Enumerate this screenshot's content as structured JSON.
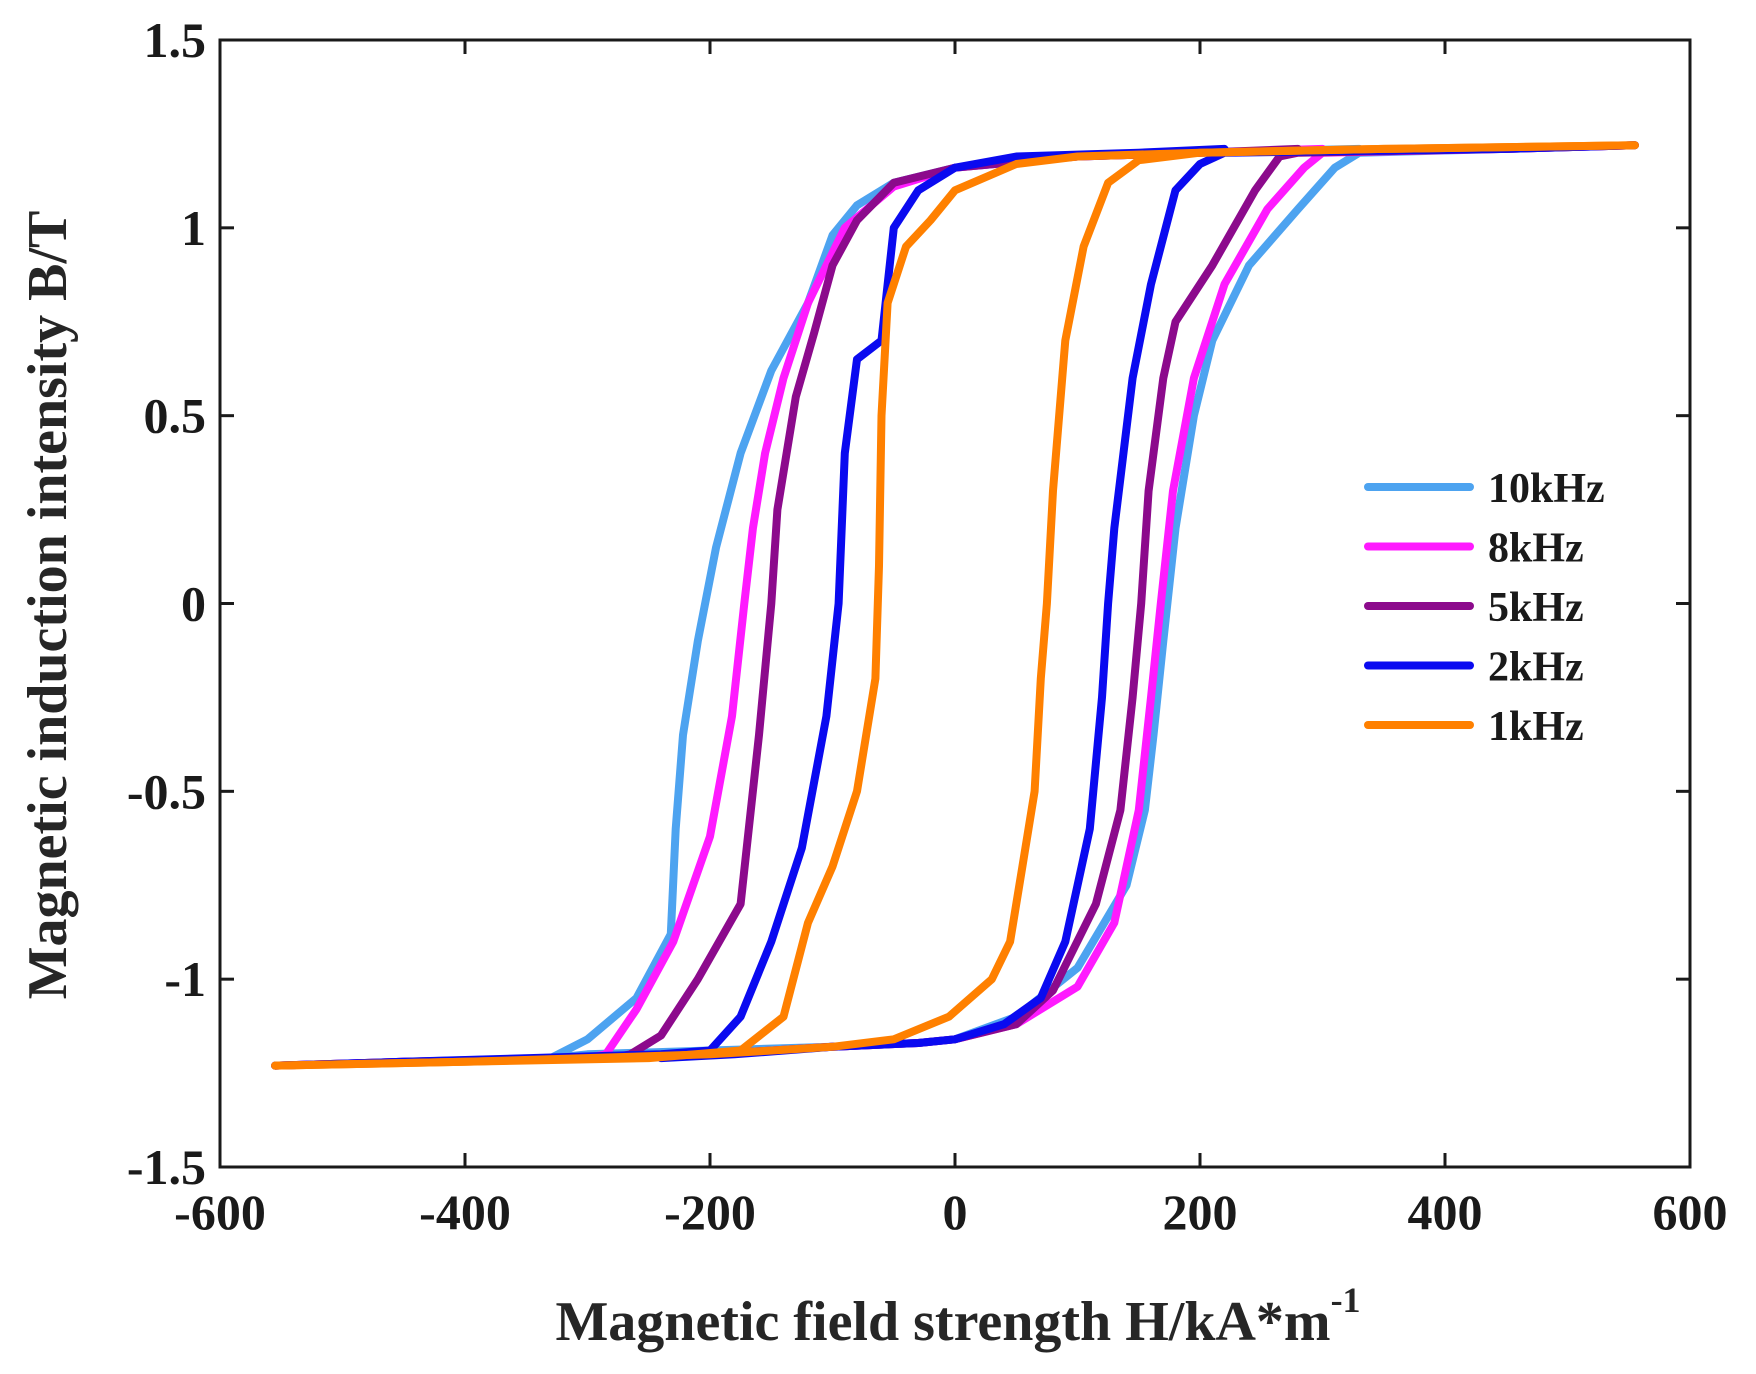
{
  "chart_data": {
    "type": "line",
    "title": "",
    "xlabel": "Magnetic field strength H/kA*m",
    "xlabel_superscript": "-1",
    "ylabel": "Magnetic induction intensity B/T",
    "xlim": [
      -600,
      600
    ],
    "ylim": [
      -1.5,
      1.5
    ],
    "xticks": [
      -600,
      -400,
      -200,
      0,
      200,
      400,
      600
    ],
    "xtick_labels": [
      "-600",
      "-400",
      "-200",
      "0",
      "200",
      "400",
      "600"
    ],
    "yticks": [
      -1.5,
      -1,
      -0.5,
      0,
      0.5,
      1,
      1.5
    ],
    "ytick_labels": [
      "-1.5",
      "-1",
      "-0.5",
      "0",
      "0.5",
      "1",
      "1.5"
    ],
    "grid": false,
    "legend_position": "right",
    "series": [
      {
        "name": "10kHz",
        "color": "#4da3f0",
        "ascending": [
          [
            -330,
            -1.21
          ],
          [
            -300,
            -1.2
          ],
          [
            -200,
            -1.19
          ],
          [
            -100,
            -1.18
          ],
          [
            -30,
            -1.17
          ],
          [
            0,
            -1.16
          ],
          [
            50,
            -1.1
          ],
          [
            100,
            -0.97
          ],
          [
            140,
            -0.75
          ],
          [
            155,
            -0.55
          ],
          [
            162,
            -0.35
          ],
          [
            170,
            -0.1
          ],
          [
            180,
            0.2
          ],
          [
            195,
            0.5
          ],
          [
            210,
            0.7
          ],
          [
            240,
            0.9
          ],
          [
            280,
            1.05
          ],
          [
            310,
            1.16
          ],
          [
            330,
            1.2
          ],
          [
            450,
            1.21
          ],
          [
            555,
            1.22
          ]
        ],
        "descending": [
          [
            330,
            1.21
          ],
          [
            200,
            1.2
          ],
          [
            100,
            1.19
          ],
          [
            0,
            1.16
          ],
          [
            -50,
            1.12
          ],
          [
            -80,
            1.06
          ],
          [
            -100,
            0.98
          ],
          [
            -120,
            0.8
          ],
          [
            -150,
            0.62
          ],
          [
            -175,
            0.4
          ],
          [
            -195,
            0.15
          ],
          [
            -210,
            -0.1
          ],
          [
            -222,
            -0.35
          ],
          [
            -228,
            -0.6
          ],
          [
            -232,
            -0.88
          ],
          [
            -260,
            -1.05
          ],
          [
            -300,
            -1.16
          ],
          [
            -330,
            -1.21
          ],
          [
            -450,
            -1.22
          ],
          [
            -555,
            -1.23
          ]
        ]
      },
      {
        "name": "8kHz",
        "color": "#ff1aff",
        "ascending": [
          [
            -300,
            -1.21
          ],
          [
            -200,
            -1.2
          ],
          [
            -100,
            -1.18
          ],
          [
            -30,
            -1.17
          ],
          [
            0,
            -1.16
          ],
          [
            50,
            -1.12
          ],
          [
            100,
            -1.02
          ],
          [
            130,
            -0.85
          ],
          [
            150,
            -0.55
          ],
          [
            160,
            -0.25
          ],
          [
            168,
            0.0
          ],
          [
            178,
            0.3
          ],
          [
            195,
            0.6
          ],
          [
            220,
            0.85
          ],
          [
            255,
            1.05
          ],
          [
            285,
            1.16
          ],
          [
            300,
            1.2
          ],
          [
            450,
            1.21
          ],
          [
            555,
            1.22
          ]
        ],
        "descending": [
          [
            300,
            1.21
          ],
          [
            200,
            1.2
          ],
          [
            100,
            1.19
          ],
          [
            0,
            1.16
          ],
          [
            -50,
            1.11
          ],
          [
            -90,
            1.0
          ],
          [
            -120,
            0.8
          ],
          [
            -140,
            0.6
          ],
          [
            -155,
            0.4
          ],
          [
            -165,
            0.2
          ],
          [
            -172,
            0.0
          ],
          [
            -182,
            -0.3
          ],
          [
            -200,
            -0.62
          ],
          [
            -230,
            -0.9
          ],
          [
            -260,
            -1.08
          ],
          [
            -285,
            -1.2
          ],
          [
            -300,
            -1.21
          ],
          [
            -450,
            -1.22
          ],
          [
            -555,
            -1.23
          ]
        ]
      },
      {
        "name": "5kHz",
        "color": "#8c0a8c",
        "ascending": [
          [
            -280,
            -1.21
          ],
          [
            -200,
            -1.2
          ],
          [
            -100,
            -1.18
          ],
          [
            -30,
            -1.17
          ],
          [
            0,
            -1.16
          ],
          [
            50,
            -1.12
          ],
          [
            80,
            -1.03
          ],
          [
            115,
            -0.8
          ],
          [
            135,
            -0.55
          ],
          [
            145,
            -0.25
          ],
          [
            152,
            0.0
          ],
          [
            158,
            0.3
          ],
          [
            170,
            0.6
          ],
          [
            180,
            0.75
          ],
          [
            210,
            0.9
          ],
          [
            245,
            1.1
          ],
          [
            265,
            1.19
          ],
          [
            280,
            1.2
          ],
          [
            450,
            1.21
          ],
          [
            555,
            1.22
          ]
        ],
        "descending": [
          [
            280,
            1.21
          ],
          [
            200,
            1.2
          ],
          [
            100,
            1.19
          ],
          [
            0,
            1.16
          ],
          [
            -50,
            1.12
          ],
          [
            -80,
            1.02
          ],
          [
            -100,
            0.9
          ],
          [
            -115,
            0.72
          ],
          [
            -130,
            0.55
          ],
          [
            -145,
            0.25
          ],
          [
            -150,
            0.0
          ],
          [
            -160,
            -0.35
          ],
          [
            -175,
            -0.8
          ],
          [
            -210,
            -1.0
          ],
          [
            -240,
            -1.15
          ],
          [
            -265,
            -1.2
          ],
          [
            -280,
            -1.21
          ],
          [
            -450,
            -1.22
          ],
          [
            -555,
            -1.23
          ]
        ]
      },
      {
        "name": "2kHz",
        "color": "#0a0af0",
        "ascending": [
          [
            -240,
            -1.21
          ],
          [
            -180,
            -1.2
          ],
          [
            -100,
            -1.18
          ],
          [
            -30,
            -1.17
          ],
          [
            0,
            -1.16
          ],
          [
            40,
            -1.12
          ],
          [
            70,
            -1.05
          ],
          [
            90,
            -0.9
          ],
          [
            110,
            -0.6
          ],
          [
            120,
            -0.25
          ],
          [
            125,
            0.0
          ],
          [
            130,
            0.2
          ],
          [
            145,
            0.6
          ],
          [
            160,
            0.85
          ],
          [
            180,
            1.1
          ],
          [
            200,
            1.17
          ],
          [
            220,
            1.2
          ],
          [
            450,
            1.21
          ],
          [
            555,
            1.22
          ]
        ],
        "descending": [
          [
            220,
            1.21
          ],
          [
            150,
            1.2
          ],
          [
            50,
            1.19
          ],
          [
            0,
            1.16
          ],
          [
            -30,
            1.1
          ],
          [
            -50,
            1.0
          ],
          [
            -60,
            0.7
          ],
          [
            -80,
            0.65
          ],
          [
            -90,
            0.4
          ],
          [
            -95,
            0.0
          ],
          [
            -105,
            -0.3
          ],
          [
            -125,
            -0.65
          ],
          [
            -150,
            -0.9
          ],
          [
            -175,
            -1.1
          ],
          [
            -200,
            -1.19
          ],
          [
            -240,
            -1.2
          ],
          [
            -450,
            -1.22
          ],
          [
            -555,
            -1.23
          ]
        ]
      },
      {
        "name": "1kHz",
        "color": "#ff8000",
        "ascending": [
          [
            -555,
            -1.23
          ],
          [
            -400,
            -1.22
          ],
          [
            -200,
            -1.2
          ],
          [
            -100,
            -1.18
          ],
          [
            -50,
            -1.16
          ],
          [
            -5,
            -1.1
          ],
          [
            30,
            -1.0
          ],
          [
            45,
            -0.9
          ],
          [
            55,
            -0.7
          ],
          [
            65,
            -0.5
          ],
          [
            70,
            -0.2
          ],
          [
            75,
            0.0
          ],
          [
            80,
            0.3
          ],
          [
            90,
            0.7
          ],
          [
            105,
            0.95
          ],
          [
            125,
            1.12
          ],
          [
            150,
            1.18
          ],
          [
            200,
            1.2
          ],
          [
            350,
            1.21
          ],
          [
            555,
            1.22
          ]
        ],
        "descending": [
          [
            555,
            1.22
          ],
          [
            350,
            1.21
          ],
          [
            200,
            1.2
          ],
          [
            100,
            1.19
          ],
          [
            50,
            1.17
          ],
          [
            0,
            1.1
          ],
          [
            -20,
            1.02
          ],
          [
            -40,
            0.95
          ],
          [
            -55,
            0.8
          ],
          [
            -60,
            0.5
          ],
          [
            -62,
            0.1
          ],
          [
            -63,
            0.0
          ],
          [
            -65,
            -0.2
          ],
          [
            -80,
            -0.5
          ],
          [
            -100,
            -0.7
          ],
          [
            -120,
            -0.85
          ],
          [
            -140,
            -1.1
          ],
          [
            -175,
            -1.19
          ],
          [
            -250,
            -1.21
          ],
          [
            -400,
            -1.22
          ],
          [
            -555,
            -1.23
          ]
        ]
      }
    ]
  }
}
